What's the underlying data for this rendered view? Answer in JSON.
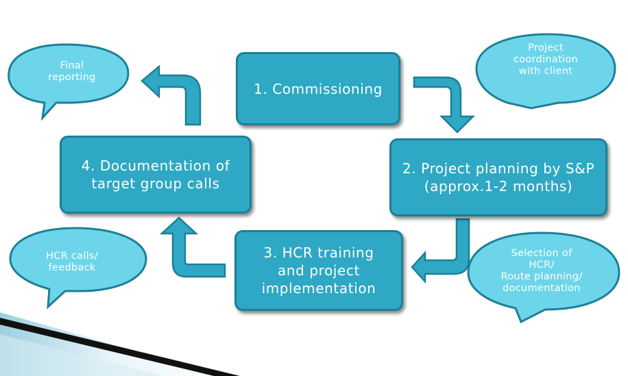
{
  "diagram": {
    "steps": [
      {
        "id": "commissioning",
        "label": "1. Commissioning"
      },
      {
        "id": "project-planning",
        "label_line1": "2. Project planning by S&P",
        "label_line2": "(approx.1-2 months)"
      },
      {
        "id": "hcr-training",
        "label_line1": "3. HCR training",
        "label_line2": "and project",
        "label_line3": "implementation"
      },
      {
        "id": "documentation",
        "label_line1": "4. Documentation of",
        "label_line2": "target group calls"
      }
    ],
    "bubbles": {
      "final_reporting": {
        "line1": "Final",
        "line2": "reporting"
      },
      "project_coordination": {
        "line1": "Project",
        "line2": "coordination",
        "line3": "with client"
      },
      "hcr_calls": {
        "line1": "HCR calls/",
        "line2": "feedback"
      },
      "selection": {
        "line1": "Selection of",
        "line2": "HCR/",
        "line3": "Route planning/",
        "line4": "documentation"
      }
    },
    "colors": {
      "box_fill": "#2ea8c4",
      "box_border": "#1d7f97",
      "bubble_fill": "#6dd5ea",
      "bubble_border": "#1d7f97",
      "arrow_fill": "#2ea8c4",
      "ribbon_dark": "#0f0f0f",
      "ribbon_light": "#e6f2f7"
    }
  }
}
